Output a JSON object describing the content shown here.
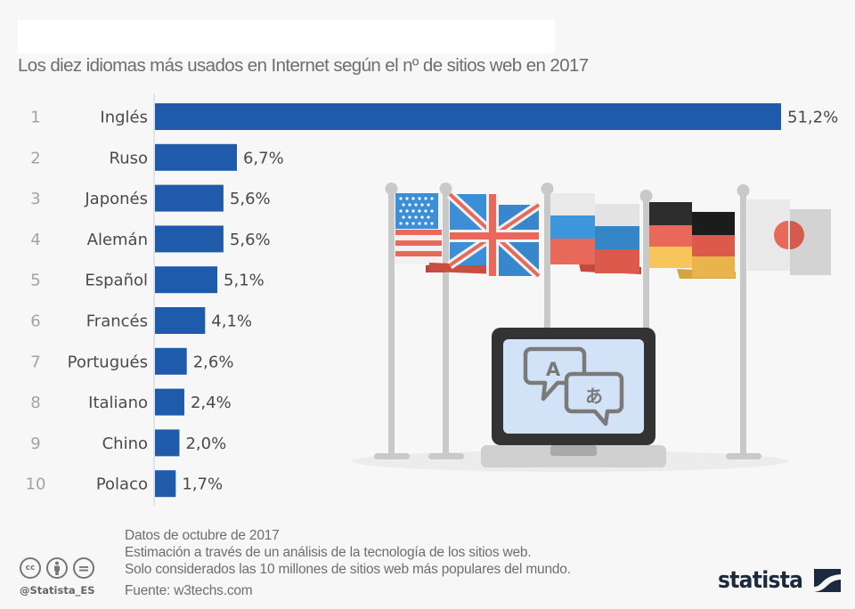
{
  "header": {
    "title": "Los diez idiomas más usados en Internet según el nº de sitios web en 2017"
  },
  "chart_data": {
    "type": "bar",
    "orientation": "horizontal",
    "title": "Los diez idiomas más usados en Internet según el nº de sitios web en 2017",
    "xlabel": "",
    "ylabel": "",
    "ranks": [
      "1",
      "2",
      "3",
      "4",
      "5",
      "6",
      "7",
      "8",
      "9",
      "10"
    ],
    "categories": [
      "Inglés",
      "Ruso",
      "Japonés",
      "Alemán",
      "Español",
      "Francés",
      "Portugués",
      "Italiano",
      "Chino",
      "Polaco"
    ],
    "values": [
      51.2,
      6.7,
      5.6,
      5.6,
      5.1,
      4.1,
      2.6,
      2.4,
      2.0,
      1.7
    ],
    "value_labels": [
      "51,2%",
      "6,7%",
      "5,6%",
      "5,6%",
      "5,1%",
      "4,1%",
      "2,6%",
      "2,4%",
      "2,0%",
      "1,7%"
    ],
    "unit": "%",
    "xlim": [
      0,
      51.2
    ],
    "grid": false,
    "legend": "none",
    "bar_color": "#1f5baa"
  },
  "illustration": {
    "flags": [
      "usa-flag",
      "uk-flag",
      "russia-flag",
      "germany-flag",
      "japan-flag"
    ],
    "laptop_glyph_latin": "A",
    "laptop_glyph_japanese": "あ"
  },
  "footer": {
    "notes": [
      "Datos de octubre de 2017",
      "Estimación a través de un análisis de la tecnología de los sitios web.",
      "Solo considerados las 10 millones de sitios web más populares del mundo."
    ],
    "source": "Fuente: w3techs.com",
    "handle": "@Statista_ES",
    "cc_icons": {
      "cc": "cc",
      "by": "by",
      "nd": "="
    },
    "brand": "statista"
  }
}
